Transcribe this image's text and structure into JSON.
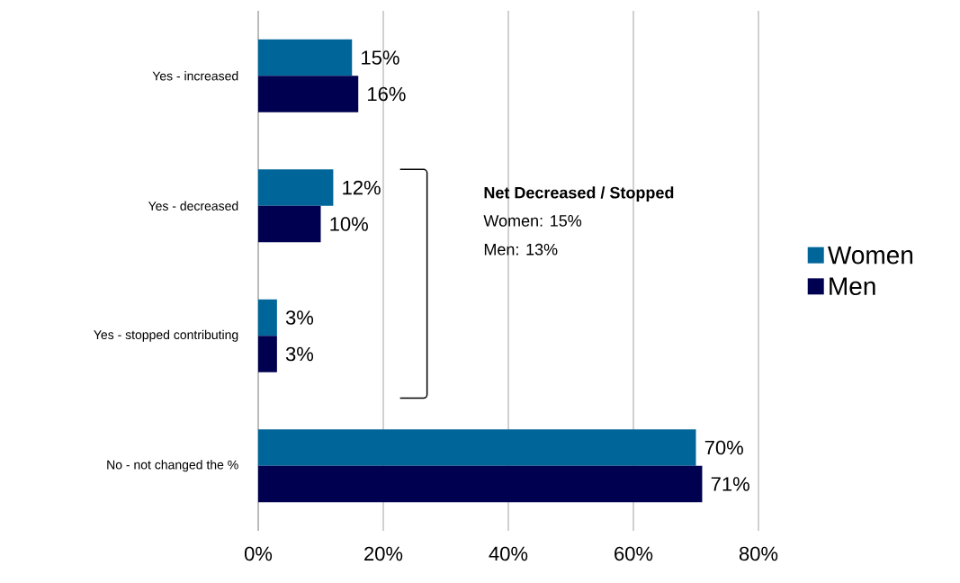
{
  "chart_data": {
    "type": "bar",
    "orientation": "horizontal",
    "categories": [
      "Yes - increased",
      "Yes - decreased",
      "Yes - stopped contributing",
      "No - not changed the %"
    ],
    "series": [
      {
        "name": "Women",
        "color": "#006699",
        "values": [
          15,
          12,
          3,
          70
        ],
        "value_labels": [
          "15%",
          "12%",
          "3%",
          "70%"
        ]
      },
      {
        "name": "Men",
        "color": "#000050",
        "values": [
          16,
          10,
          3,
          71
        ],
        "value_labels": [
          "16%",
          "10%",
          "3%",
          "71%"
        ]
      }
    ],
    "xlim": [
      0,
      80
    ],
    "xticks": [
      {
        "value": 0,
        "label": "0%"
      },
      {
        "value": 20,
        "label": "20%"
      },
      {
        "value": 40,
        "label": "40%"
      },
      {
        "value": 60,
        "label": "60%"
      },
      {
        "value": 80,
        "label": "80%"
      }
    ],
    "grid": "x",
    "legend": "right",
    "annotations": [
      "Net Decreased / Stopped",
      "Women: 15%",
      "Men: 13%"
    ]
  }
}
